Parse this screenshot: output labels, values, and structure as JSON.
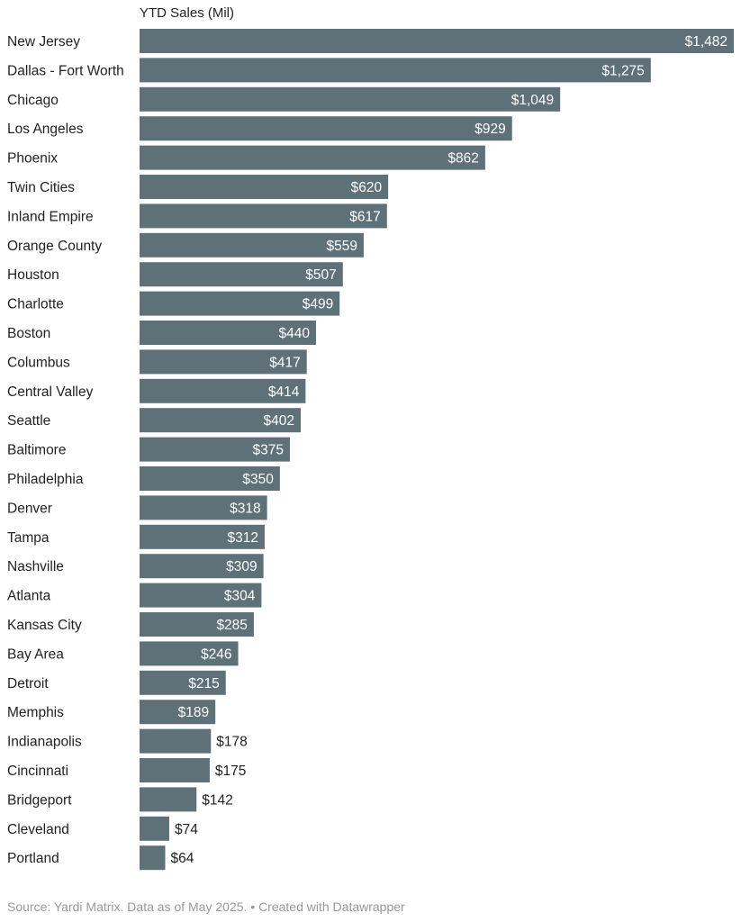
{
  "chart_data": {
    "type": "bar",
    "orientation": "horizontal",
    "title": "YTD Sales (Mil)",
    "value_prefix": "$",
    "bar_color": "#5f7178",
    "categories": [
      "New Jersey",
      "Dallas - Fort Worth",
      "Chicago",
      "Los Angeles",
      "Phoenix",
      "Twin Cities",
      "Inland Empire",
      "Orange County",
      "Houston",
      "Charlotte",
      "Boston",
      "Columbus",
      "Central Valley",
      "Seattle",
      "Baltimore",
      "Philadelphia",
      "Denver",
      "Tampa",
      "Nashville",
      "Atlanta",
      "Kansas City",
      "Bay Area",
      "Detroit",
      "Memphis",
      "Indianapolis",
      "Cincinnati",
      "Bridgeport",
      "Cleveland",
      "Portland"
    ],
    "values": [
      1482,
      1275,
      1049,
      929,
      862,
      620,
      617,
      559,
      507,
      499,
      440,
      417,
      414,
      402,
      375,
      350,
      318,
      312,
      309,
      304,
      285,
      246,
      215,
      189,
      178,
      175,
      142,
      74,
      64
    ],
    "grid": false
  },
  "footer": {
    "source": "Source: Yardi Matrix. Data as of May 2025. • Created with Datawrapper"
  }
}
